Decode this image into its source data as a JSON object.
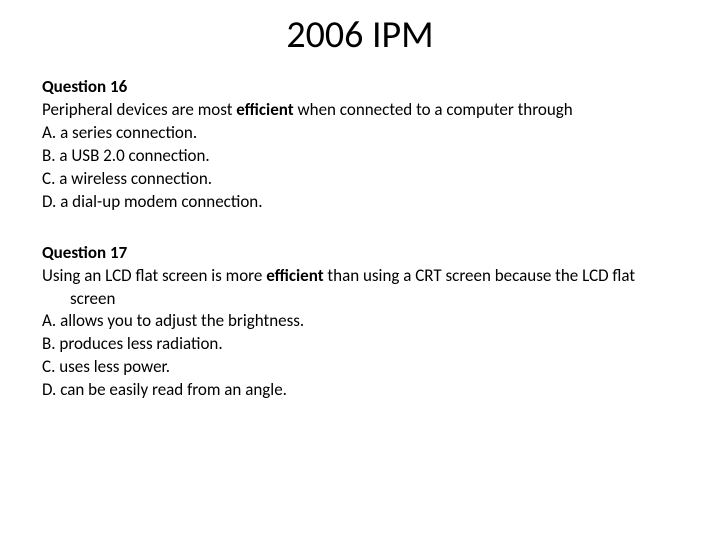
{
  "title": "2006 IPM",
  "colors": {
    "background": "#ffffff",
    "text": "#000000"
  },
  "fonts": {
    "title_size": 38,
    "body_size": 17,
    "bold_weight": 700
  },
  "questions": [
    {
      "heading": "Question 16",
      "stem_pre": "Peripheral devices are most ",
      "stem_bold": "efficient",
      "stem_post": " when connected to a computer through",
      "stem_cont": "",
      "choices": {
        "A": "A. a series connection.",
        "B": "B. a USB 2.0 connection.",
        "C": "C. a wireless connection.",
        "D": "D. a dial-up modem connection."
      }
    },
    {
      "heading": "Question 17",
      "stem_pre": "Using an LCD flat screen is more ",
      "stem_bold": "efficient",
      "stem_post": " than using a CRT screen because the LCD flat",
      "stem_cont": "screen",
      "choices": {
        "A": "A. allows you to adjust the brightness.",
        "B": "B. produces less radiation.",
        "C": "C. uses less power.",
        "D": "D. can be easily read from an angle."
      }
    }
  ]
}
